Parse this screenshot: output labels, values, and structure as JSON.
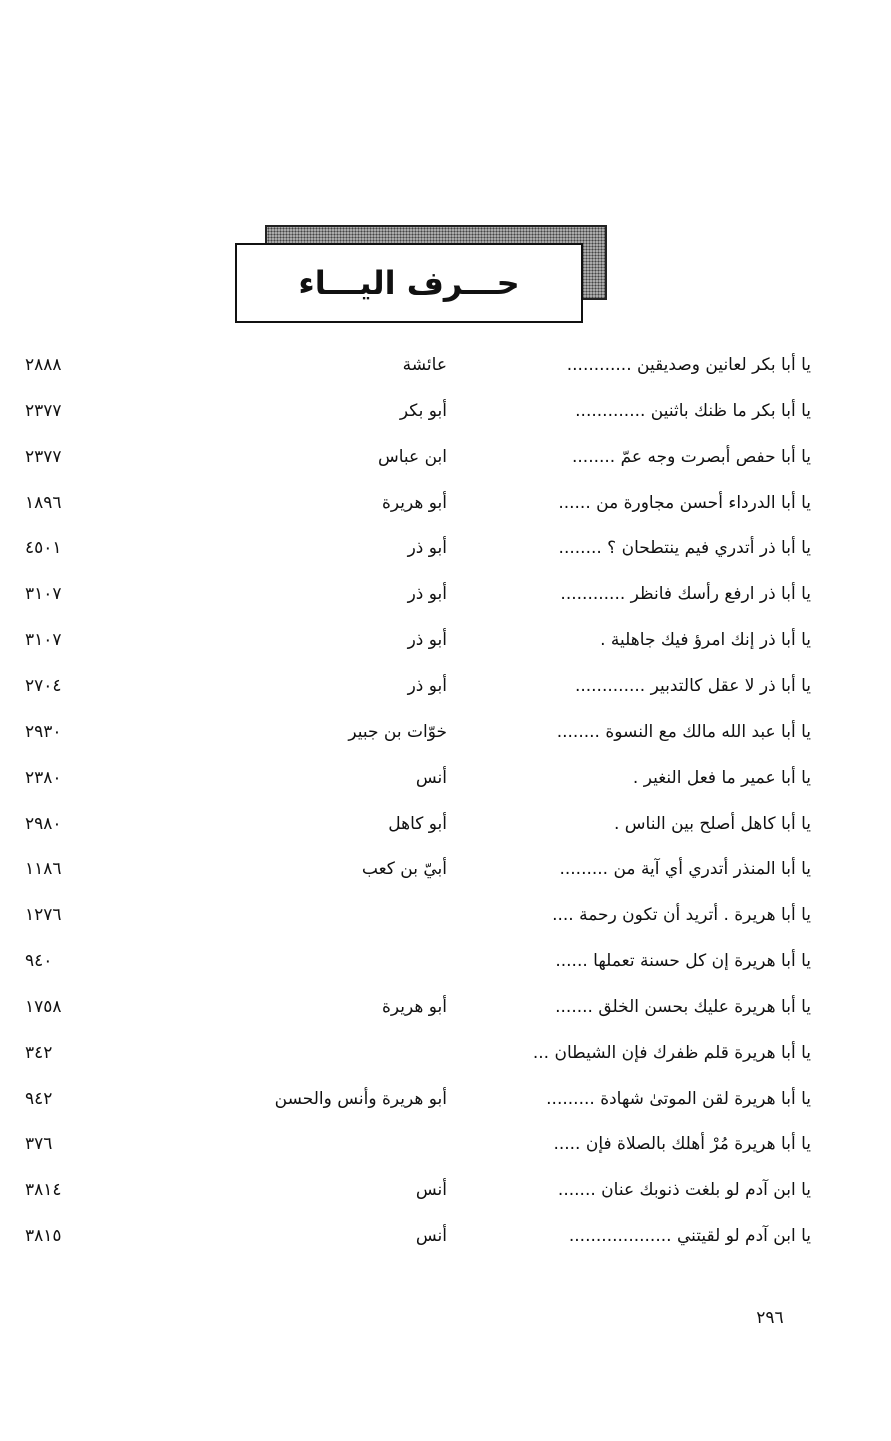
{
  "section_title": "حـــرف اليـــاء",
  "entries": [
    {
      "text": "يا أبا بكر لعانين وصديقين ............",
      "narrator": "عائشة",
      "number": "٢٨٨٨"
    },
    {
      "text": "يا أبا بكر ما ظنك باثنين .............",
      "narrator": "أبو بكر",
      "number": "٢٣٧٧"
    },
    {
      "text": "يا أبا حفص أبصرت وجه عمّ ........",
      "narrator": "ابن عباس",
      "number": "٢٣٧٧"
    },
    {
      "text": "يا أبا الدرداء أحسن مجاورة من ......",
      "narrator": "أبو هريرة",
      "number": "١٨٩٦"
    },
    {
      "text": "يا أبا ذر أتدري فيم ينتطحان ؟ ........",
      "narrator": "أبو ذر",
      "number": "٤٥٠١"
    },
    {
      "text": "يا أبا ذر ارفع رأسك فانظر ............",
      "narrator": "أبو ذر",
      "number": "٣١٠٧"
    },
    {
      "text": "يا أبا ذر إنك امرؤ فيك جاهلية .",
      "narrator": "أبو ذر",
      "number": "٣١٠٧"
    },
    {
      "text": "يا أبا ذر لا عقل كالتدبير .............",
      "narrator": "أبو ذر",
      "number": "٢٧٠٤"
    },
    {
      "text": "يا أبا عبد الله مالك مع النسوة ........",
      "narrator": "خوّات بن جبير",
      "number": "٢٩٣٠"
    },
    {
      "text": "يا أبا عمير ما فعل النغير .",
      "narrator": "أنس",
      "number": "٢٣٨٠"
    },
    {
      "text": "يا أبا كاهل أصلح بين الناس .",
      "narrator": "أبو كاهل",
      "number": "٢٩٨٠"
    },
    {
      "text": "يا أبا المنذر أتدري أي آية من .........",
      "narrator": "أبيّ بن كعب",
      "number": "١١٨٦"
    },
    {
      "text": "يا أبا هريرة . أتريد أن تكون رحمة ....",
      "narrator": "",
      "number": "١٢٧٦"
    },
    {
      "text": "يا أبا هريرة إن كل حسنة تعملها ......",
      "narrator": "",
      "number": "٩٤٠"
    },
    {
      "text": "يا أبا هريرة عليك بحسن الخلق .......",
      "narrator": "أبو هريرة",
      "number": "١٧٥٨"
    },
    {
      "text": "يا أبا هريرة قلم ظفرك فإن الشيطان ...",
      "narrator": "",
      "number": "٣٤٢"
    },
    {
      "text": "يا أبا هريرة لقن الموتىٰ شهادة .........",
      "narrator": "أبو هريرة وأنس والحسن",
      "number": "٩٤٢"
    },
    {
      "text": "يا أبا هريرة مُرْ أهلك بالصلاة فإن .....",
      "narrator": "",
      "number": "٣٧٦"
    },
    {
      "text": "يا ابن آدم لو بلغت ذنوبك عنان .......",
      "narrator": "أنس",
      "number": "٣٨١٤"
    },
    {
      "text": "يا ابن آدم لو لقيتني ...................",
      "narrator": "أنس",
      "number": "٣٨١٥"
    }
  ],
  "page_number": "٢٩٦"
}
